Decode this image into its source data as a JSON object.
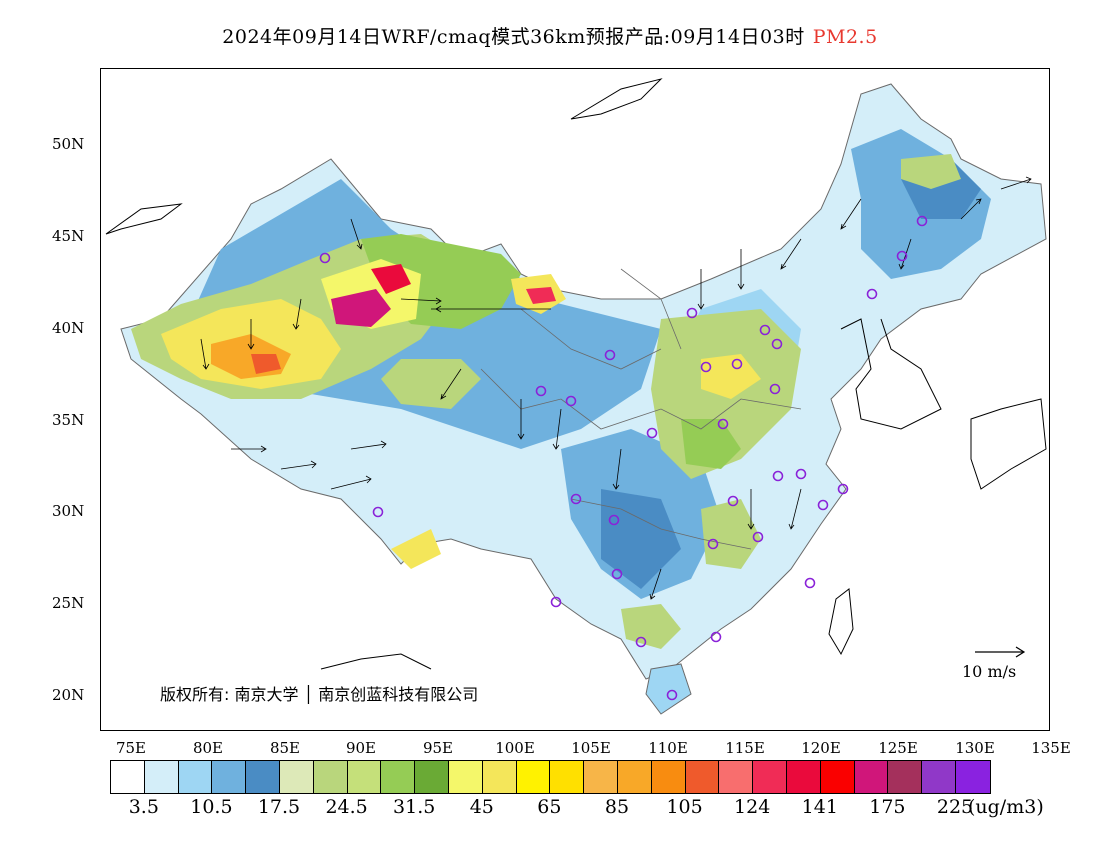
{
  "title": {
    "main": "2024年09月14日WRF/cmaq模式36km预报产品:09月14日03时",
    "pollutant": "PM2.5",
    "pollutant_color": "#e8382f"
  },
  "axes": {
    "y_ticks": [
      "50N",
      "45N",
      "40N",
      "35N",
      "30N",
      "25N",
      "20N"
    ],
    "x_ticks": [
      "75E",
      "80E",
      "85E",
      "90E",
      "95E",
      "100E",
      "105E",
      "110E",
      "115E",
      "120E",
      "125E",
      "130E",
      "135E"
    ]
  },
  "map": {
    "extent": {
      "lon": [
        73,
        135
      ],
      "lat": [
        18,
        54
      ]
    },
    "copyright": "版权所有: 南京大学 │ 南京创蓝科技有限公司",
    "wind_scale_label": "10 m/s",
    "station_marker_color": "#8a22d8"
  },
  "colorbar": {
    "colors": [
      "#ffffff",
      "#d4eef9",
      "#9ed6f3",
      "#6fb1de",
      "#4a8cc4",
      "#dde9b8",
      "#b9d67c",
      "#c5e07a",
      "#95cc55",
      "#6aaa35",
      "#f4f76a",
      "#f4e65a",
      "#fff200",
      "#ffe000",
      "#f7b548",
      "#f8a828",
      "#f88c10",
      "#ef5a2c",
      "#f86e6e",
      "#f02c56",
      "#ea0a3c",
      "#fa0000",
      "#d0167a",
      "#a4305c",
      "#9038c8",
      "#8a22e0"
    ],
    "labels": [
      "3.5",
      "10.5",
      "17.5",
      "24.5",
      "31.5",
      "45",
      "65",
      "85",
      "105",
      "124",
      "141",
      "175",
      "225"
    ],
    "unit": "(ug/m3)"
  }
}
